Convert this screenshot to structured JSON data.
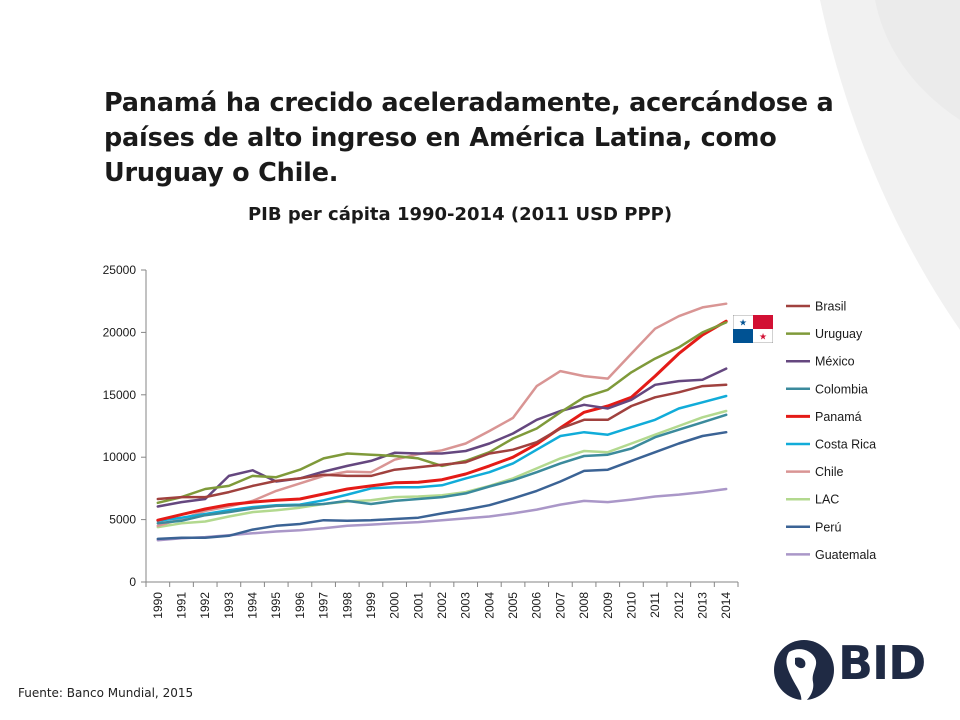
{
  "headline": "Panamá ha crecido aceleradamente, acercándose a países de alto ingreso en América Latina, como Uruguay o Chile.",
  "source": "Fuente: Banco Mundial, 2015",
  "logo_text": "BID",
  "chart_data": {
    "type": "line",
    "title": "PIB per cápita 1990-2014  (2011 USD PPP)",
    "xlabel": "",
    "ylabel": "",
    "ylim": [
      0,
      25000
    ],
    "yticks": [
      0,
      5000,
      10000,
      15000,
      20000,
      25000
    ],
    "grid": false,
    "legend_position": "right",
    "categories": [
      "1990",
      "1991",
      "1992",
      "1993",
      "1994",
      "1995",
      "1996",
      "1997",
      "1998",
      "1999",
      "2000",
      "2001",
      "2002",
      "2003",
      "2004",
      "2005",
      "2006",
      "2007",
      "2008",
      "2009",
      "2010",
      "2011",
      "2012",
      "2013",
      "2014"
    ],
    "series": [
      {
        "name": "Brasil",
        "color": "#a0413e",
        "width": 2.5,
        "values": [
          6650,
          6800,
          6800,
          7200,
          7700,
          8100,
          8300,
          8600,
          8500,
          8500,
          9000,
          9200,
          9400,
          9600,
          10300,
          10600,
          11200,
          12300,
          13000,
          13000,
          14100,
          14800,
          15200,
          15700,
          15800
        ]
      },
      {
        "name": "Uruguay",
        "color": "#7f9a3a",
        "width": 2.5,
        "values": [
          6350,
          6800,
          7450,
          7700,
          8500,
          8400,
          9000,
          9900,
          10300,
          10200,
          10100,
          9900,
          9300,
          9700,
          10400,
          11500,
          12300,
          13600,
          14800,
          15400,
          16800,
          17900,
          18800,
          20000,
          20800
        ]
      },
      {
        "name": "México",
        "color": "#65477f",
        "width": 2.5,
        "values": [
          6050,
          6400,
          6650,
          8500,
          8950,
          8050,
          8300,
          8850,
          9300,
          9700,
          10350,
          10300,
          10300,
          10500,
          11100,
          11900,
          13000,
          13700,
          14200,
          13900,
          14600,
          15800,
          16100,
          16200,
          17100
        ]
      },
      {
        "name": "Colombia",
        "color": "#3b8a9c",
        "width": 2.5,
        "values": [
          4700,
          4900,
          5350,
          5600,
          5900,
          6100,
          6150,
          6250,
          6500,
          6250,
          6500,
          6650,
          6800,
          7100,
          7650,
          8150,
          8800,
          9500,
          10100,
          10200,
          10700,
          11600,
          12200,
          12800,
          13400
        ]
      },
      {
        "name": "Panamá",
        "color": "#e41b17",
        "width": 3,
        "values": [
          4950,
          5400,
          5850,
          6200,
          6400,
          6550,
          6650,
          7050,
          7450,
          7700,
          7950,
          8000,
          8200,
          8650,
          9300,
          10000,
          11050,
          12350,
          13600,
          14100,
          14800,
          16500,
          18300,
          19800,
          20900
        ]
      },
      {
        "name": "Costa Rica",
        "color": "#11acd9",
        "width": 2.5,
        "values": [
          4900,
          5150,
          5450,
          5750,
          6000,
          6150,
          6200,
          6550,
          7000,
          7500,
          7600,
          7600,
          7750,
          8300,
          8800,
          9500,
          10600,
          11700,
          12000,
          11800,
          12400,
          13000,
          13900,
          14400,
          14900
        ]
      },
      {
        "name": "Chile",
        "color": "#d99594",
        "width": 2.5,
        "values": [
          4500,
          5050,
          5700,
          6050,
          6500,
          7300,
          7900,
          8500,
          8850,
          8800,
          9800,
          10250,
          10550,
          11100,
          12100,
          13150,
          15700,
          16900,
          16500,
          16300,
          18300,
          20300,
          21300,
          22000,
          22300
        ]
      },
      {
        "name": "LAC",
        "color": "#b3d98f",
        "width": 2.5,
        "values": [
          4400,
          4700,
          4850,
          5250,
          5600,
          5750,
          5950,
          6250,
          6450,
          6550,
          6800,
          6850,
          6950,
          7200,
          7700,
          8300,
          9100,
          9900,
          10500,
          10400,
          11100,
          11800,
          12500,
          13200,
          13700
        ]
      },
      {
        "name": "Perú",
        "color": "#3b6395",
        "width": 2.5,
        "values": [
          3450,
          3550,
          3550,
          3700,
          4200,
          4500,
          4650,
          4950,
          4900,
          4950,
          5050,
          5150,
          5500,
          5800,
          6150,
          6700,
          7300,
          8050,
          8900,
          9000,
          9700,
          10400,
          11100,
          11700,
          12000
        ]
      },
      {
        "name": "Guatemala",
        "color": "#aa97c8",
        "width": 2.5,
        "values": [
          3350,
          3500,
          3600,
          3750,
          3900,
          4050,
          4150,
          4300,
          4500,
          4600,
          4700,
          4800,
          4950,
          5100,
          5250,
          5500,
          5800,
          6200,
          6500,
          6400,
          6600,
          6850,
          7000,
          7200,
          7450
        ]
      }
    ]
  }
}
